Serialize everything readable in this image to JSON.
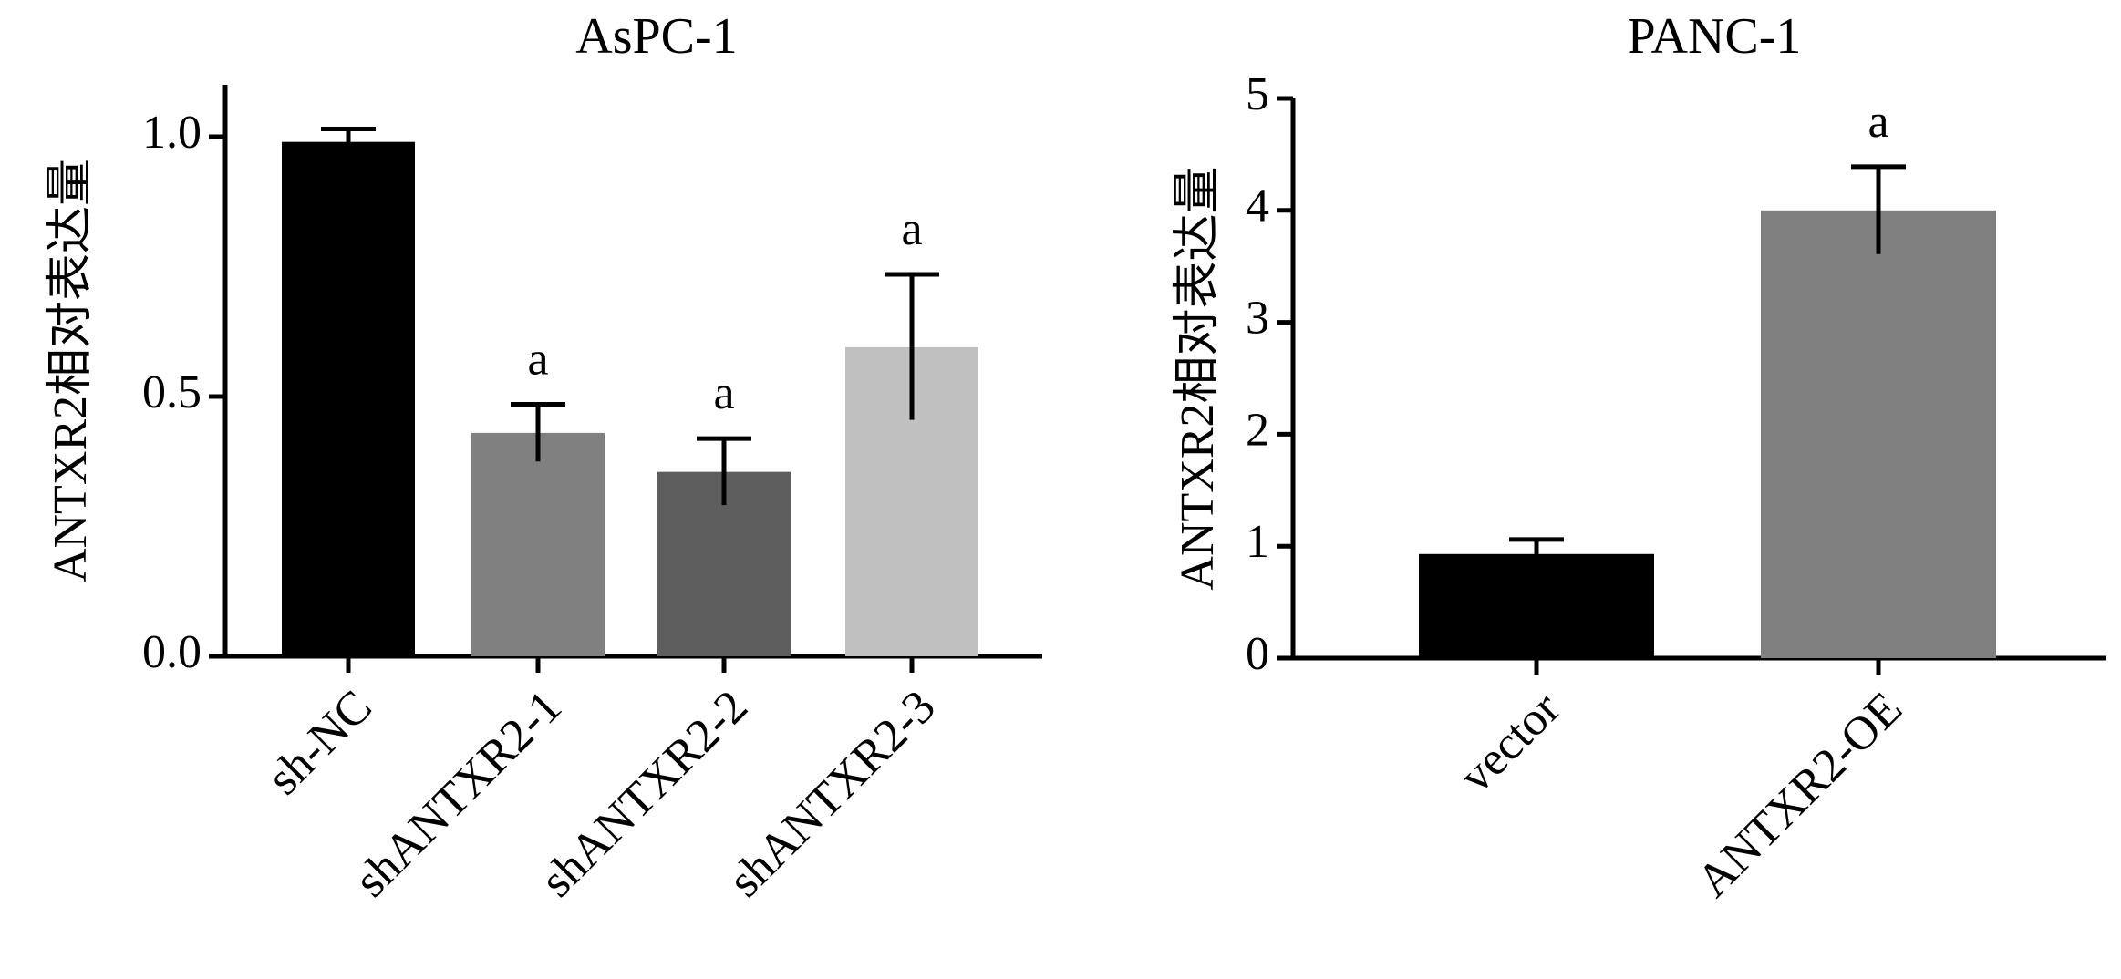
{
  "chart_data": [
    {
      "type": "bar",
      "title": "AsPC-1",
      "y_label": "ANTXR2相对表达量",
      "categories": [
        "sh-NC",
        "shANTXR2-1",
        "shANTXR2-2",
        "shANTXR2-3"
      ],
      "values": [
        0.99,
        0.43,
        0.355,
        0.595
      ],
      "errors": [
        0.025,
        0.055,
        0.064,
        0.14
      ],
      "colors": [
        "#000000",
        "#808080",
        "#5e5e5e",
        "#c0c0c0"
      ],
      "annotations": [
        null,
        "a",
        "a",
        "a"
      ],
      "ylim": [
        0,
        1.1
      ],
      "yticks": [
        {
          "value": 0,
          "label": "0.0"
        },
        0.5,
        {
          "value": 1,
          "label": "1.0"
        }
      ]
    },
    {
      "type": "bar",
      "title": "PANC-1",
      "y_label": "ANTXR2相对表达量",
      "categories": [
        "vector",
        "ANTXR2-OE"
      ],
      "values": [
        0.93,
        4.0
      ],
      "errors": [
        0.13,
        0.39
      ],
      "colors": [
        "#000000",
        "#808080"
      ],
      "annotations": [
        null,
        "a"
      ],
      "ylim": [
        0,
        5
      ],
      "yticks": [
        0,
        1,
        2,
        3,
        4,
        5
      ]
    }
  ]
}
